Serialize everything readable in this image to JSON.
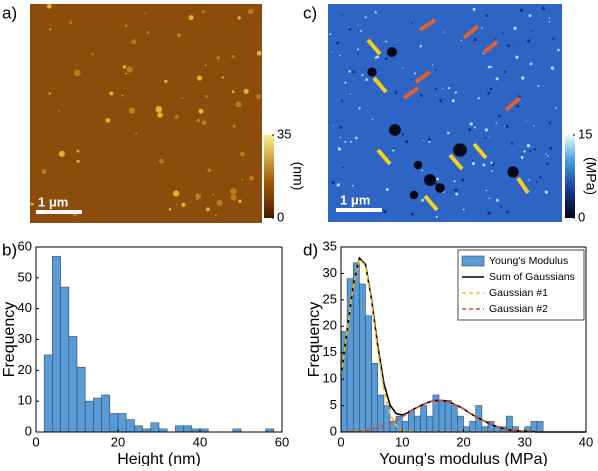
{
  "images": [
    {
      "label": "a)",
      "scale_bar": "1 μm",
      "colorbar": {
        "label": "(nm)",
        "lim": [
          0,
          35
        ],
        "ticks": [
          0,
          35
        ]
      }
    },
    {
      "label": "c)",
      "scale_bar": "1 μm",
      "colorbar": {
        "label": "(MPa)",
        "lim": [
          0,
          15
        ],
        "ticks": [
          0,
          15
        ]
      }
    }
  ],
  "chart_data": [
    {
      "type": "histogram",
      "label": "b)",
      "x_label": "Height (nm)",
      "y_label": "Frequency",
      "bins": [
        0,
        2,
        4,
        6,
        8,
        10,
        12,
        14,
        16,
        18,
        20,
        22,
        24,
        26,
        28,
        30,
        32,
        34,
        36,
        38,
        40,
        42,
        44,
        46,
        48,
        50,
        52,
        54,
        56,
        58
      ],
      "series": [
        {
          "color": "#5b9bd5",
          "values": [
            0,
            25,
            57,
            47,
            31,
            21,
            10,
            11,
            12,
            6,
            6,
            4,
            2,
            1,
            3,
            1,
            0,
            2,
            2,
            1,
            1,
            0,
            0,
            0,
            1,
            0,
            0,
            0,
            1
          ]
        }
      ],
      "xlim": [
        0,
        60
      ],
      "xticks": [
        0,
        20,
        40,
        60
      ],
      "ylim": [
        0,
        60
      ],
      "yticks": [
        0,
        10,
        20,
        30,
        40,
        50,
        60
      ]
    },
    {
      "type": "histogram",
      "label": "d)",
      "x_label": "Young's modulus (MPa)",
      "y_label": "Frequency",
      "bins": [
        0,
        1,
        2,
        3,
        4,
        5,
        6,
        7,
        8,
        9,
        10,
        11,
        12,
        13,
        14,
        15,
        16,
        17,
        18,
        19,
        20,
        21,
        22,
        23,
        24,
        25,
        26,
        27,
        28,
        29,
        30,
        31,
        32,
        33,
        34
      ],
      "series": [
        {
          "name": "Young's Modulus",
          "color": "#5b9bd5",
          "values": [
            19,
            29,
            32,
            28,
            22,
            13,
            7,
            5,
            2,
            3,
            2,
            4,
            3,
            5,
            3,
            7,
            6,
            6,
            5,
            3,
            1,
            2,
            5,
            1,
            2,
            1,
            1,
            3,
            1,
            0,
            1,
            2,
            2,
            0
          ]
        }
      ],
      "lines": [
        {
          "name": "Sum of Gaussians",
          "color": "#000000",
          "dash": false,
          "x": [
            0,
            1,
            2,
            3,
            4,
            5,
            6,
            7,
            8,
            9,
            10,
            11,
            12,
            13,
            14,
            15,
            16,
            17,
            18,
            19,
            20,
            21,
            22,
            23,
            24,
            25,
            26,
            27,
            28,
            29,
            30,
            31,
            32,
            33,
            34,
            35,
            36,
            37,
            38,
            39,
            40
          ],
          "values": [
            10.7,
            19.2,
            27.8,
            32.9,
            31.7,
            25.0,
            16.3,
            9.2,
            5.1,
            3.5,
            3.2,
            3.7,
            4.4,
            5.0,
            5.5,
            5.9,
            6.0,
            5.9,
            5.5,
            5.0,
            4.4,
            3.6,
            2.9,
            2.3,
            1.7,
            1.2,
            0.8,
            0.5,
            0.3,
            0.2,
            0.1,
            0.1,
            0,
            0,
            0,
            0,
            0,
            0,
            0,
            0,
            0
          ]
        },
        {
          "name": "Gaussian #1",
          "color": "#f2c21b",
          "dash": true,
          "x": [
            0,
            1,
            2,
            3,
            4,
            5,
            6,
            7,
            8,
            9,
            10,
            11,
            12,
            13,
            14,
            15,
            16,
            17,
            18,
            19,
            20,
            21,
            22,
            23,
            24,
            25,
            26,
            27,
            28,
            29,
            30,
            31,
            32,
            33,
            34,
            35,
            36,
            37,
            38,
            39,
            40
          ],
          "values": [
            10.7,
            19.1,
            27.7,
            32.7,
            31.4,
            24.5,
            15.5,
            8.0,
            3.4,
            1.2,
            0.3,
            0.1,
            0,
            0,
            0,
            0,
            0,
            0,
            0,
            0,
            0,
            0,
            0,
            0,
            0,
            0,
            0,
            0,
            0,
            0,
            0,
            0,
            0,
            0,
            0,
            0,
            0,
            0,
            0,
            0,
            0
          ]
        },
        {
          "name": "Gaussian #2",
          "color": "#e04a2a",
          "dash": true,
          "x": [
            0,
            1,
            2,
            3,
            4,
            5,
            6,
            7,
            8,
            9,
            10,
            11,
            12,
            13,
            14,
            15,
            16,
            17,
            18,
            19,
            20,
            21,
            22,
            23,
            24,
            25,
            26,
            27,
            28,
            29,
            30,
            31,
            32,
            33,
            34,
            35,
            36,
            37,
            38,
            39,
            40
          ],
          "values": [
            0,
            0.1,
            0.1,
            0.2,
            0.3,
            0.5,
            0.8,
            1.2,
            1.7,
            2.3,
            2.9,
            3.6,
            4.4,
            5.0,
            5.5,
            5.9,
            6.0,
            5.9,
            5.5,
            5.0,
            4.4,
            3.6,
            2.9,
            2.3,
            1.7,
            1.2,
            0.8,
            0.5,
            0.3,
            0.2,
            0.1,
            0.1,
            0,
            0,
            0,
            0,
            0,
            0,
            0,
            0,
            0
          ]
        }
      ],
      "xlim": [
        0,
        40
      ],
      "xticks": [
        0,
        10,
        20,
        30,
        40
      ],
      "ylim": [
        0,
        35
      ],
      "yticks": [
        0,
        5,
        10,
        15,
        20,
        25,
        30,
        35
      ]
    }
  ]
}
